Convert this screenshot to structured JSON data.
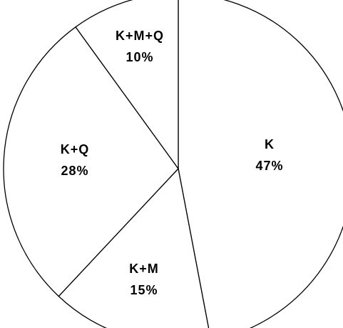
{
  "chart_data": {
    "type": "pie",
    "title": "",
    "slices": [
      {
        "name": "K",
        "value": 47,
        "label": "47%"
      },
      {
        "name": "K+M",
        "value": 15,
        "label": "15%"
      },
      {
        "name": "K+Q",
        "value": 28,
        "label": "28%"
      },
      {
        "name": "K+M+Q",
        "value": 10,
        "label": "10%"
      }
    ],
    "start_angle_deg": 0,
    "direction": "clockwise",
    "colors": {
      "fill": "#ffffff",
      "stroke": "#000000",
      "text": "#000000"
    },
    "legend": "none"
  }
}
